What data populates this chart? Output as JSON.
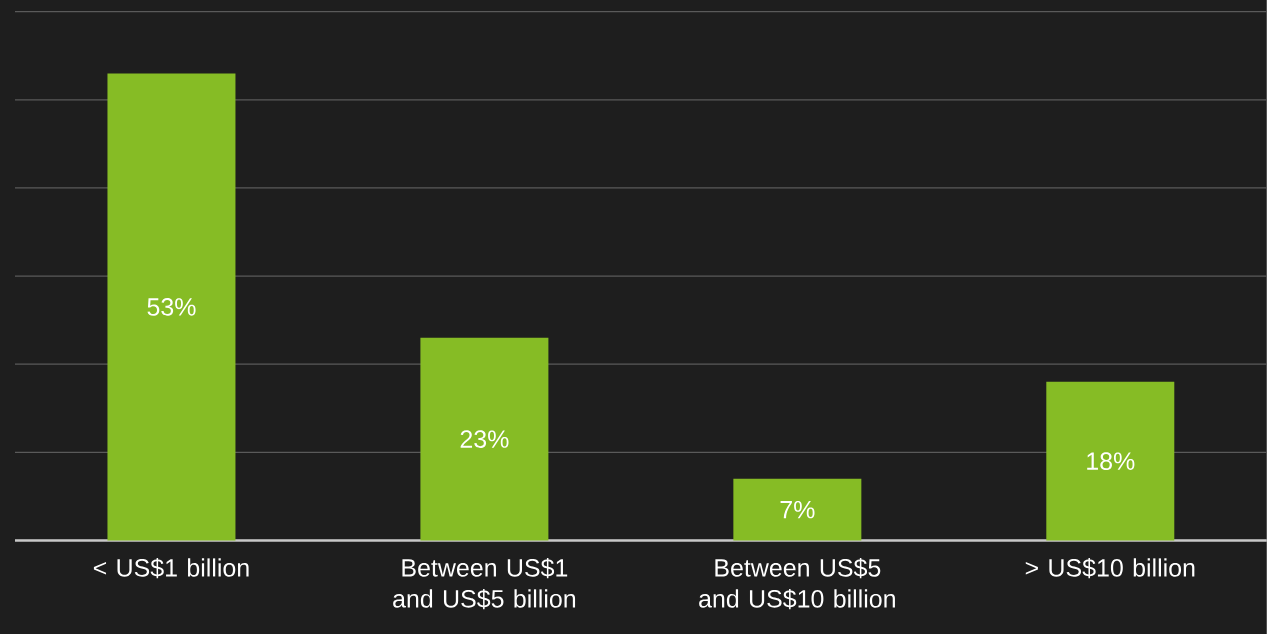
{
  "chart_data": {
    "type": "bar",
    "categories": [
      "< US$1 billion",
      "Between US$1 and US$5 billion",
      "Between US$5 and US$10 billion",
      "> US$10 billion"
    ],
    "values": [
      53,
      23,
      7,
      18
    ],
    "value_labels": [
      "53%",
      "23%",
      "7%",
      "18%"
    ],
    "color": "#86bc25",
    "grid": "y",
    "tick_labels": "x"
  }
}
